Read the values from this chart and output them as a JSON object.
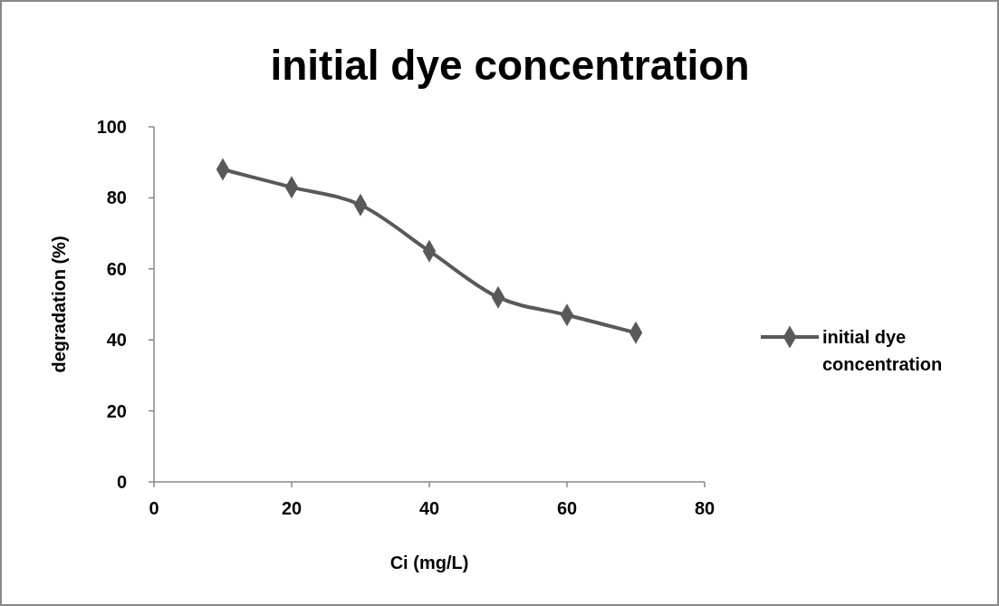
{
  "chart_data": {
    "type": "line",
    "title": "initial dye concentration",
    "xlabel": "Ci (mg/L)",
    "ylabel": "degradation (%)",
    "x": [
      10,
      20,
      30,
      40,
      50,
      60,
      70
    ],
    "series": [
      {
        "name": "initial dye concentration",
        "color": "#595959",
        "values": [
          88,
          83,
          78,
          65,
          52,
          47,
          42
        ]
      }
    ],
    "xlim": [
      0,
      80
    ],
    "xticks": [
      0,
      20,
      40,
      60,
      80
    ],
    "ylim": [
      0,
      100
    ],
    "yticks": [
      0,
      20,
      40,
      60,
      80,
      100
    ],
    "grid": false,
    "legend": "right",
    "marker": "diamond",
    "line_style": "solid"
  }
}
